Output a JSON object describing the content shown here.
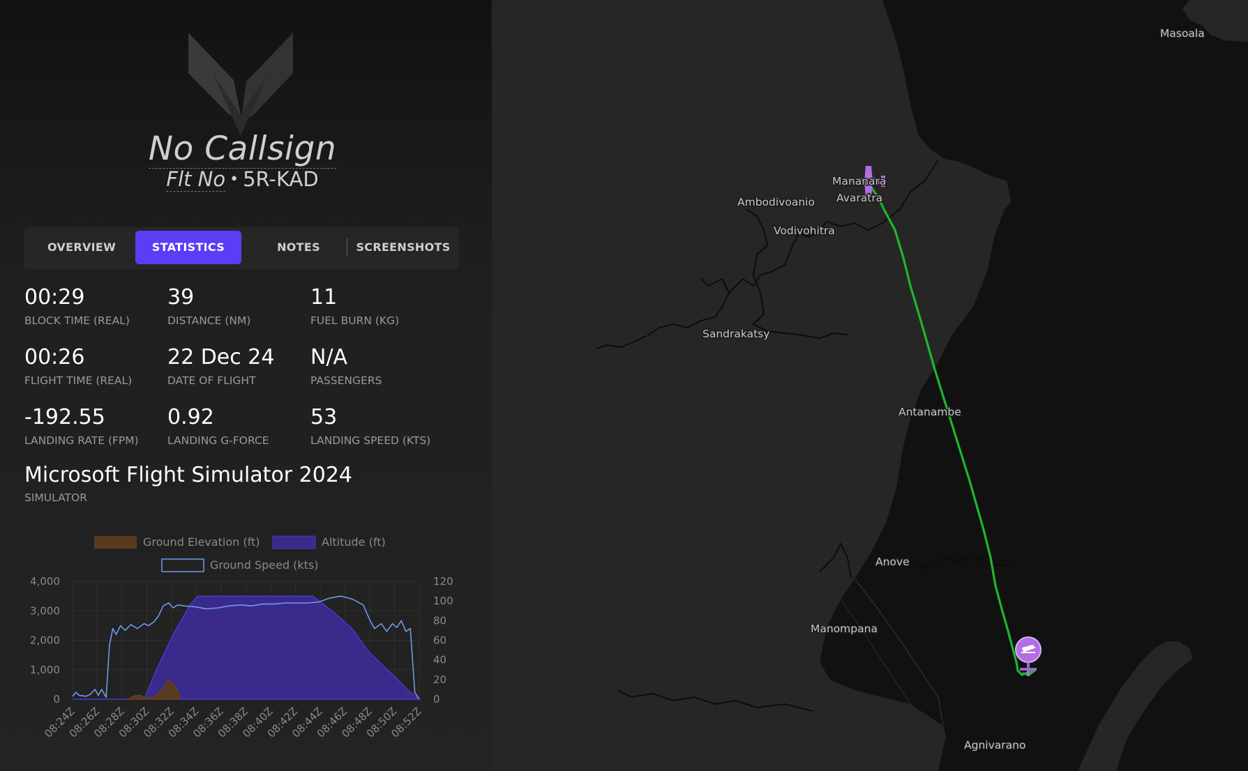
{
  "header": {
    "callsign": "No Callsign",
    "flight_no_label": "Flt No",
    "separator": "•",
    "registration": "5R-KAD"
  },
  "tabs": [
    {
      "label": "OVERVIEW",
      "active": false
    },
    {
      "label": "STATISTICS",
      "active": true
    },
    {
      "label": "NOTES",
      "active": false
    },
    {
      "label": "SCREENSHOTS",
      "active": false
    }
  ],
  "stats": [
    {
      "value": "00:29",
      "label": "BLOCK TIME (REAL)"
    },
    {
      "value": "39",
      "label": "DISTANCE (NM)"
    },
    {
      "value": "11",
      "label": "FUEL BURN (KG)"
    },
    {
      "value": "00:26",
      "label": "FLIGHT TIME (REAL)"
    },
    {
      "value": "22 Dec 24",
      "label": "DATE OF FLIGHT"
    },
    {
      "value": "N/A",
      "label": "PASSENGERS"
    },
    {
      "value": "-192.55",
      "label": "LANDING RATE (FPM)"
    },
    {
      "value": "0.92",
      "label": "LANDING G-FORCE"
    },
    {
      "value": "53",
      "label": "LANDING SPEED (KTS)"
    }
  ],
  "simulator": {
    "value": "Microsoft Flight Simulator 2024",
    "label": "SIMULATOR"
  },
  "colors": {
    "accent": "#5b3df5",
    "altitude_fill": "#3a2a8c",
    "ground_elevation": "#5a3a1c",
    "ground_speed_line": "#6f9be8",
    "route": "#1fb52f",
    "marker": "#b36ee6"
  },
  "chart_data": {
    "type": "area",
    "legend": [
      {
        "name": "Ground Elevation (ft)",
        "color": "#5a3a1c"
      },
      {
        "name": "Altitude (ft)",
        "color": "#3a2a8c"
      },
      {
        "name": "Ground Speed (kts)",
        "color": "#6f9be8"
      }
    ],
    "legend_position": "top",
    "x_ticks": [
      "08:24Z",
      "08:26Z",
      "08:28Z",
      "08:30Z",
      "08:32Z",
      "08:34Z",
      "08:36Z",
      "08:38Z",
      "08:40Z",
      "08:42Z",
      "08:44Z",
      "08:46Z",
      "08:48Z",
      "08:50Z",
      "08:52Z"
    ],
    "y_left": {
      "ticks": [
        "4,000",
        "3,000",
        "2,000",
        "1,000",
        "0"
      ],
      "range": [
        0,
        4000
      ]
    },
    "y_right": {
      "ticks": [
        "120",
        "100",
        "80",
        "60",
        "40",
        "20",
        "0"
      ],
      "range": [
        0,
        120
      ]
    },
    "grid": true,
    "x_range_minutes": [
      0,
      29
    ],
    "series": [
      {
        "name": "Altitude (ft)",
        "points": [
          [
            0,
            0
          ],
          [
            3,
            0
          ],
          [
            6.4,
            0
          ],
          [
            7.5,
            1000
          ],
          [
            9,
            2200
          ],
          [
            10.5,
            3200
          ],
          [
            11.2,
            3500
          ],
          [
            21.5,
            3500
          ],
          [
            23.2,
            3000
          ],
          [
            25,
            2400
          ],
          [
            26.5,
            1600
          ],
          [
            28,
            1050
          ],
          [
            29,
            700
          ],
          [
            30,
            300
          ],
          [
            31,
            0
          ]
        ]
      },
      {
        "name": "Ground Elevation (ft)",
        "points": [
          [
            5,
            0
          ],
          [
            5.2,
            60
          ],
          [
            5.6,
            120
          ],
          [
            6,
            140
          ],
          [
            6.4,
            90
          ],
          [
            7,
            30
          ],
          [
            7.4,
            120
          ],
          [
            7.6,
            200
          ],
          [
            8.0,
            330
          ],
          [
            8.3,
            500
          ],
          [
            8.6,
            680
          ],
          [
            8.9,
            560
          ],
          [
            9.2,
            420
          ],
          [
            9.4,
            300
          ],
          [
            9.6,
            100
          ],
          [
            9.7,
            0
          ]
        ]
      },
      {
        "name": "Ground Speed (kts)",
        "points": [
          [
            0,
            3
          ],
          [
            0.3,
            7
          ],
          [
            0.6,
            4
          ],
          [
            1.2,
            3
          ],
          [
            1.6,
            5
          ],
          [
            2,
            10
          ],
          [
            2.3,
            4
          ],
          [
            2.6,
            10
          ],
          [
            3,
            2
          ],
          [
            3.3,
            55
          ],
          [
            3.6,
            72
          ],
          [
            3.9,
            66
          ],
          [
            4.3,
            75
          ],
          [
            4.7,
            70
          ],
          [
            5.2,
            76
          ],
          [
            5.8,
            72
          ],
          [
            6.4,
            77
          ],
          [
            6.8,
            75
          ],
          [
            7.3,
            79
          ],
          [
            7.7,
            85
          ],
          [
            8.1,
            95
          ],
          [
            8.6,
            98
          ],
          [
            9.0,
            93
          ],
          [
            9.4,
            96
          ],
          [
            10,
            95
          ],
          [
            11,
            94
          ],
          [
            12,
            92
          ],
          [
            13,
            93
          ],
          [
            14,
            95
          ],
          [
            15,
            96
          ],
          [
            16,
            95
          ],
          [
            17,
            97
          ],
          [
            18,
            97
          ],
          [
            19,
            98
          ],
          [
            20,
            98
          ],
          [
            21,
            98
          ],
          [
            22,
            99
          ],
          [
            23,
            103
          ],
          [
            24,
            105
          ],
          [
            25,
            102
          ],
          [
            26,
            96
          ],
          [
            26.6,
            80
          ],
          [
            27,
            72
          ],
          [
            27.6,
            77
          ],
          [
            28.1,
            69
          ],
          [
            28.6,
            77
          ],
          [
            29,
            73
          ],
          [
            29.4,
            80
          ],
          [
            29.8,
            69
          ],
          [
            30.2,
            72
          ],
          [
            30.6,
            7
          ],
          [
            31,
            0
          ]
        ]
      }
    ]
  },
  "map": {
    "labels": [
      {
        "name": "Masoala"
      },
      {
        "name": "Mananara"
      },
      {
        "name": "Avaratra"
      },
      {
        "name": "Ambodivoanio"
      },
      {
        "name": "Vodivohitra"
      },
      {
        "name": "Sandrakatsy"
      },
      {
        "name": "Antanambe"
      },
      {
        "name": "Anove"
      },
      {
        "name": "Manompana"
      },
      {
        "name": "Agnivarano"
      }
    ]
  }
}
